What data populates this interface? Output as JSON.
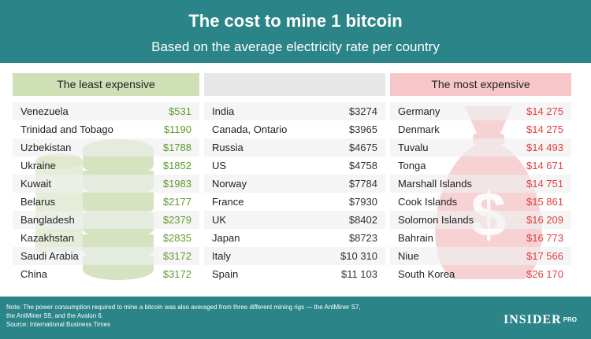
{
  "header": {
    "title": "The cost to mine 1 bitcoin",
    "subtitle": "Based on the average electricity rate per country"
  },
  "columns": {
    "least_label": "The least expensive",
    "mid_label": "",
    "most_label": "The most expensive"
  },
  "colors": {
    "header_bg": "#2b8488",
    "least_accent": "#5e9b2e",
    "most_accent": "#e0403f"
  },
  "icons": {
    "least_decoration": "coin-stack-icon",
    "most_decoration": "money-bag-icon"
  },
  "chart_data": {
    "type": "table",
    "title": "The cost to mine 1 bitcoin",
    "subtitle": "Based on the average electricity rate per country",
    "groups": [
      {
        "name": "The least expensive",
        "rows": [
          {
            "country": "Venezuela",
            "cost": "$531"
          },
          {
            "country": "Trinidad and Tobago",
            "cost": "$1190"
          },
          {
            "country": "Uzbekistan",
            "cost": "$1788"
          },
          {
            "country": "Ukraine",
            "cost": "$1852"
          },
          {
            "country": "Kuwait",
            "cost": "$1983"
          },
          {
            "country": "Belarus",
            "cost": "$2177"
          },
          {
            "country": "Bangladesh",
            "cost": "$2379"
          },
          {
            "country": "Kazakhstan",
            "cost": "$2835"
          },
          {
            "country": "Saudi Arabia",
            "cost": "$3172"
          },
          {
            "country": "China",
            "cost": "$3172"
          }
        ]
      },
      {
        "name": "",
        "rows": [
          {
            "country": "India",
            "cost": "$3274"
          },
          {
            "country": "Canada, Ontario",
            "cost": "$3965"
          },
          {
            "country": "Russia",
            "cost": "$4675"
          },
          {
            "country": "US",
            "cost": "$4758"
          },
          {
            "country": "Norway",
            "cost": "$7784"
          },
          {
            "country": "France",
            "cost": "$7930"
          },
          {
            "country": "UK",
            "cost": "$8402"
          },
          {
            "country": "Japan",
            "cost": "$8723"
          },
          {
            "country": "Italy",
            "cost": "$10 310"
          },
          {
            "country": "Spain",
            "cost": "$11 103"
          }
        ]
      },
      {
        "name": "The most expensive",
        "rows": [
          {
            "country": "Germany",
            "cost": "$14 275"
          },
          {
            "country": "Denmark",
            "cost": "$14 275"
          },
          {
            "country": "Tuvalu",
            "cost": "$14 493"
          },
          {
            "country": "Tonga",
            "cost": "$14 671"
          },
          {
            "country": "Marshall Islands",
            "cost": "$14 751"
          },
          {
            "country": "Cook Islands",
            "cost": "$15 861"
          },
          {
            "country": "Solomon Islands",
            "cost": "$16 209"
          },
          {
            "country": "Bahrain",
            "cost": "$16 773"
          },
          {
            "country": "Niue",
            "cost": "$17 566"
          },
          {
            "country": "South Korea",
            "cost": "$26 170"
          }
        ]
      }
    ]
  },
  "footer": {
    "note_line1": "Note: The power consumption required to mine a bitcoin was also averaged from three different mining rigs — the AntMiner S7,",
    "note_line2": "the AntMiner S9, and the Avalon 6.",
    "source": "Source: International Business Times",
    "logo_main": "INSIDER",
    "logo_pro": "PRO"
  }
}
